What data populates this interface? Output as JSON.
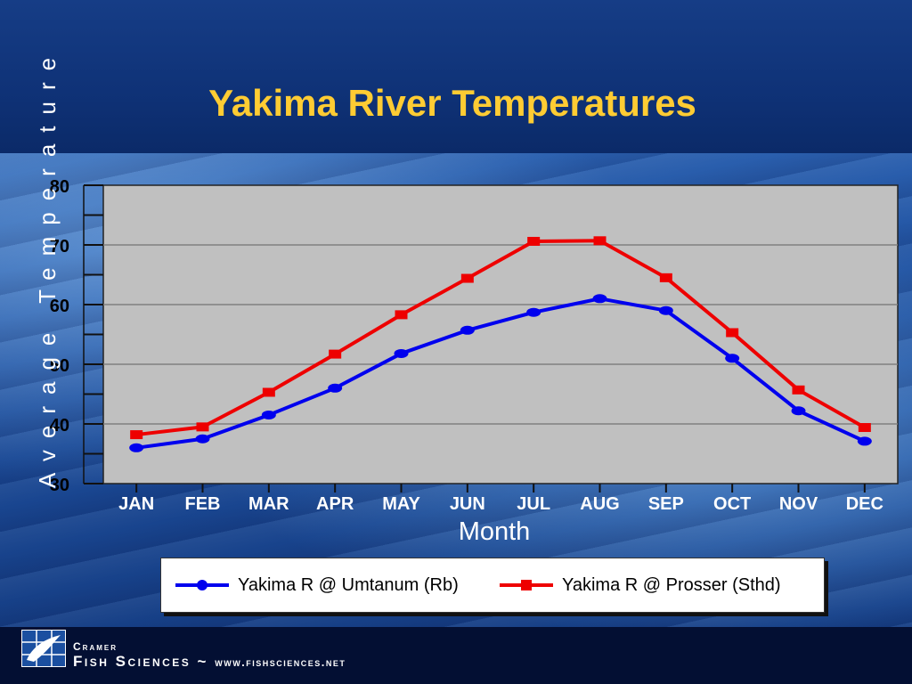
{
  "slide": {
    "title": "Yakima River Temperatures"
  },
  "footer": {
    "brand_top": "Cramer",
    "brand_main": "Fish Sciences",
    "separator": "~",
    "url": "www.fishsciences.net"
  },
  "chart_data": {
    "type": "line",
    "title": "Yakima River Temperatures",
    "xlabel": "Month",
    "ylabel": "Average Temperature",
    "categories": [
      "JAN",
      "FEB",
      "MAR",
      "APR",
      "MAY",
      "JUN",
      "JUL",
      "AUG",
      "SEP",
      "OCT",
      "NOV",
      "DEC"
    ],
    "ylim": [
      30,
      80
    ],
    "yticks": [
      30,
      40,
      50,
      60,
      70,
      80
    ],
    "grid": true,
    "legend_position": "bottom",
    "series": [
      {
        "name": "Yakima R @ Umtanum (Rb)",
        "color": "#0000ee",
        "marker": "circle",
        "values": [
          36.0,
          37.5,
          41.5,
          46.0,
          51.8,
          55.7,
          58.7,
          61.0,
          59.0,
          51.0,
          42.2,
          37.1
        ]
      },
      {
        "name": "Yakima R @ Prosser (Sthd)",
        "color": "#ee0000",
        "marker": "square",
        "values": [
          38.2,
          39.5,
          45.3,
          51.7,
          58.3,
          64.4,
          70.6,
          70.7,
          64.5,
          55.3,
          45.7,
          39.4
        ]
      }
    ]
  }
}
